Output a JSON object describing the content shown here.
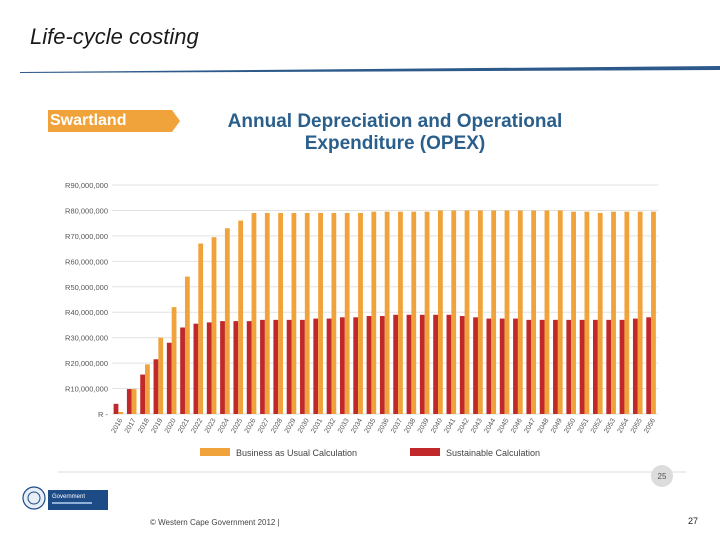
{
  "slide": {
    "title": "Life-cycle costing",
    "footer": "© Western Cape Government 2012  |",
    "page_number": "27",
    "slide_badge": "25",
    "logo_text": "Government"
  },
  "colors": {
    "bau": "#f0a33a",
    "sustainable": "#c0282a",
    "title_blue": "#2a5f8c",
    "badge_orange": "#f0a33a",
    "rule_blue": "#2d5a8a"
  },
  "chart_data": {
    "type": "bar",
    "badge": "Swartland",
    "title_line1": "Annual Depreciation and Operational",
    "title_line2": "Expenditure (OPEX)",
    "categories": [
      "2016",
      "2017",
      "2018",
      "2019",
      "2020",
      "2021",
      "2022",
      "2023",
      "2024",
      "2025",
      "2026",
      "2027",
      "2028",
      "2029",
      "2030",
      "2031",
      "2032",
      "2033",
      "2034",
      "2035",
      "2036",
      "2037",
      "2038",
      "2039",
      "2040",
      "2041",
      "2042",
      "2043",
      "2044",
      "2045",
      "2046",
      "2047",
      "2048",
      "2049",
      "2050",
      "2051",
      "2052",
      "2053",
      "2054",
      "2055",
      "2056"
    ],
    "ytick_labels": [
      "R -",
      "R10,000,000",
      "R20,000,000",
      "R30,000,000",
      "R40,000,000",
      "R50,000,000",
      "R60,000,000",
      "R70,000,000",
      "R80,000,000",
      "R90,000,000"
    ],
    "yticks": [
      0,
      10000000,
      20000000,
      30000000,
      40000000,
      50000000,
      60000000,
      70000000,
      80000000,
      90000000
    ],
    "ylim": [
      0,
      90000000
    ],
    "grid": true,
    "legend_position": "bottom",
    "series": [
      {
        "name": "Business as Usual Calculation",
        "values": [
          800000,
          9800000,
          19500000,
          30000000,
          42000000,
          54000000,
          67000000,
          69500000,
          73000000,
          76000000,
          79000000,
          79000000,
          79000000,
          79000000,
          79000000,
          79000000,
          79000000,
          79000000,
          79000000,
          79500000,
          79500000,
          79500000,
          79500000,
          79500000,
          80000000,
          80000000,
          80000000,
          80000000,
          80000000,
          80000000,
          80000000,
          80000000,
          80000000,
          80000000,
          79500000,
          79500000,
          79000000,
          79500000,
          79500000,
          79500000,
          79500000
        ]
      },
      {
        "name": "Sustainable Calculation",
        "values": [
          4000000,
          9800000,
          15500000,
          21500000,
          28000000,
          34000000,
          35500000,
          36000000,
          36500000,
          36500000,
          36500000,
          37000000,
          37000000,
          37000000,
          37000000,
          37500000,
          37500000,
          38000000,
          38000000,
          38500000,
          38500000,
          39000000,
          39000000,
          39000000,
          39000000,
          39000000,
          38500000,
          38000000,
          37500000,
          37500000,
          37500000,
          37000000,
          37000000,
          37000000,
          37000000,
          37000000,
          37000000,
          37000000,
          37000000,
          37500000,
          38000000
        ]
      }
    ]
  }
}
